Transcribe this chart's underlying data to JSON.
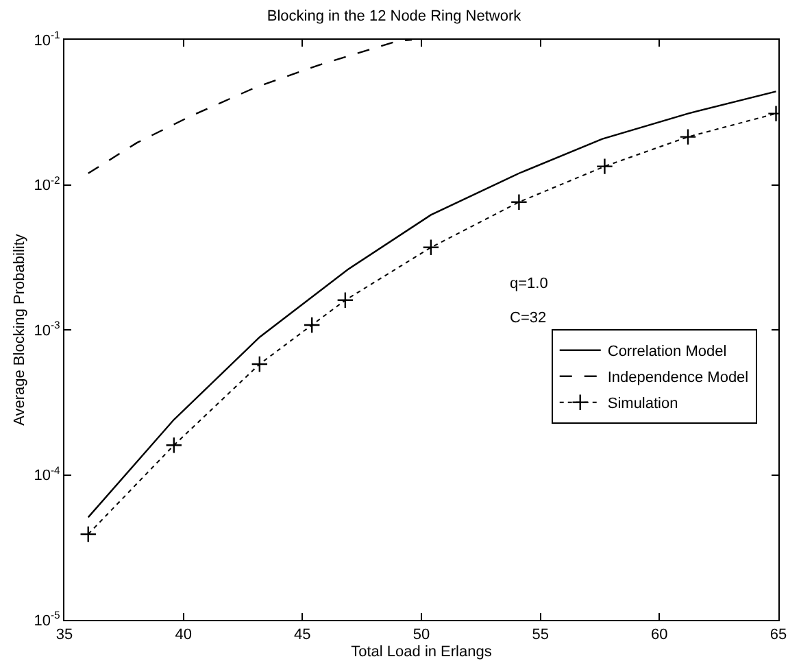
{
  "chart_data": {
    "type": "line",
    "title": "Blocking in the 12 Node Ring Network",
    "xlabel": "Total Load in Erlangs",
    "ylabel": "Average Blocking Probability",
    "log": "y",
    "grid": false,
    "legend": "right",
    "xlim": [
      35,
      65
    ],
    "xticks": [
      35,
      40,
      45,
      50,
      55,
      60,
      65
    ],
    "ylim": [
      1e-05,
      0.1
    ],
    "yticks": [
      {
        "value": 1e-05,
        "label": "10$^{-5}$"
      },
      {
        "value": 0.0001,
        "label": "10$^{-4}$"
      },
      {
        "value": 0.001,
        "label": "10$^{-3}$"
      },
      {
        "value": 0.01,
        "label": "10$^{-2}$"
      },
      {
        "value": 0.1,
        "label": "10$^{-1}$"
      }
    ],
    "annotations": [
      "q=1.0",
      "C=32"
    ],
    "series": [
      {
        "name": "Correlation Model",
        "color": "#000000",
        "line_style": "solid",
        "marker": "none",
        "x": [
          36.0,
          39.6,
          43.2,
          46.9,
          50.4,
          54.1,
          57.6,
          61.2,
          64.9
        ],
        "values": [
          5.1e-05,
          0.00024,
          0.00089,
          0.0026,
          0.0062,
          0.012,
          0.0207,
          0.031,
          0.044
        ]
      },
      {
        "name": "Independence Model",
        "color": "#000000",
        "line_style": "dashed",
        "marker": "none",
        "x": [
          36.0,
          38.05,
          40.35,
          43.04,
          45.7,
          49.0,
          49.6
        ],
        "values": [
          0.012,
          0.0195,
          0.03,
          0.047,
          0.067,
          0.098,
          0.1
        ]
      },
      {
        "name": "Simulation",
        "color": "#000000",
        "line_style": "dotted",
        "marker": "cross",
        "x": [
          36.0,
          39.6,
          43.2,
          45.4,
          46.8,
          50.4,
          54.1,
          57.7,
          61.2,
          64.9
        ],
        "values": [
          3.9e-05,
          0.00016,
          0.00058,
          0.00108,
          0.0016,
          0.0037,
          0.0076,
          0.0134,
          0.0214,
          0.031
        ]
      }
    ]
  }
}
